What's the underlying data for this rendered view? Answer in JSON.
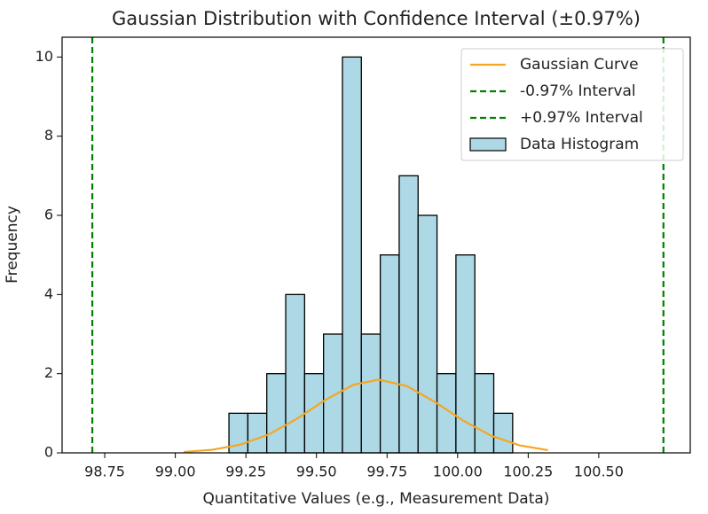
{
  "chart_data": {
    "type": "histogram",
    "title": "Gaussian Distribution with Confidence Interval (±0.97%)",
    "x_label": "Quantitative Values (e.g., Measurement Data)",
    "y_label": "Frequency",
    "xlim": [
      98.599,
      100.824
    ],
    "ylim": [
      0,
      10.5
    ],
    "xticks": [
      98.75,
      {
        "value": 99.0,
        "label": "99.00"
      },
      99.25,
      {
        "value": 99.5,
        "label": "99.50"
      },
      99.75,
      {
        "value": 100.0,
        "label": "100.00"
      },
      100.25,
      {
        "value": 100.5,
        "label": "100.50"
      }
    ],
    "yticks": [
      0,
      2,
      4,
      6,
      8,
      10
    ],
    "grid": false,
    "legend": "upper right",
    "series": [
      {
        "name": "Gaussian Curve",
        "type": "line",
        "color": "#f5a623",
        "x": [
          99.03,
          99.13,
          99.23,
          99.33,
          99.43,
          99.53,
          99.63,
          99.72,
          99.82,
          99.92,
          100.02,
          100.12,
          100.22,
          100.32
        ],
        "values": [
          0.024,
          0.077,
          0.207,
          0.461,
          0.858,
          1.33,
          1.718,
          1.85,
          1.689,
          1.284,
          0.813,
          0.429,
          0.189,
          0.069
        ]
      },
      {
        "name": "-0.97% Interval",
        "type": "vline",
        "color": "#008000",
        "value": 98.706
      },
      {
        "name": "+0.97% Interval",
        "type": "vline",
        "color": "#008000",
        "value": 100.729
      },
      {
        "name": "Data Histogram",
        "type": "histogram",
        "color": "#add8e6",
        "bins": [
          99.19,
          99.257,
          99.324,
          99.391,
          99.458,
          99.525,
          99.592,
          99.659,
          99.726,
          99.793,
          99.86,
          99.927,
          99.994,
          100.061,
          100.128,
          100.195
        ],
        "values": [
          1,
          1,
          2,
          4,
          2,
          3,
          10,
          3,
          5,
          7,
          6,
          2,
          5,
          2,
          1
        ]
      }
    ]
  }
}
